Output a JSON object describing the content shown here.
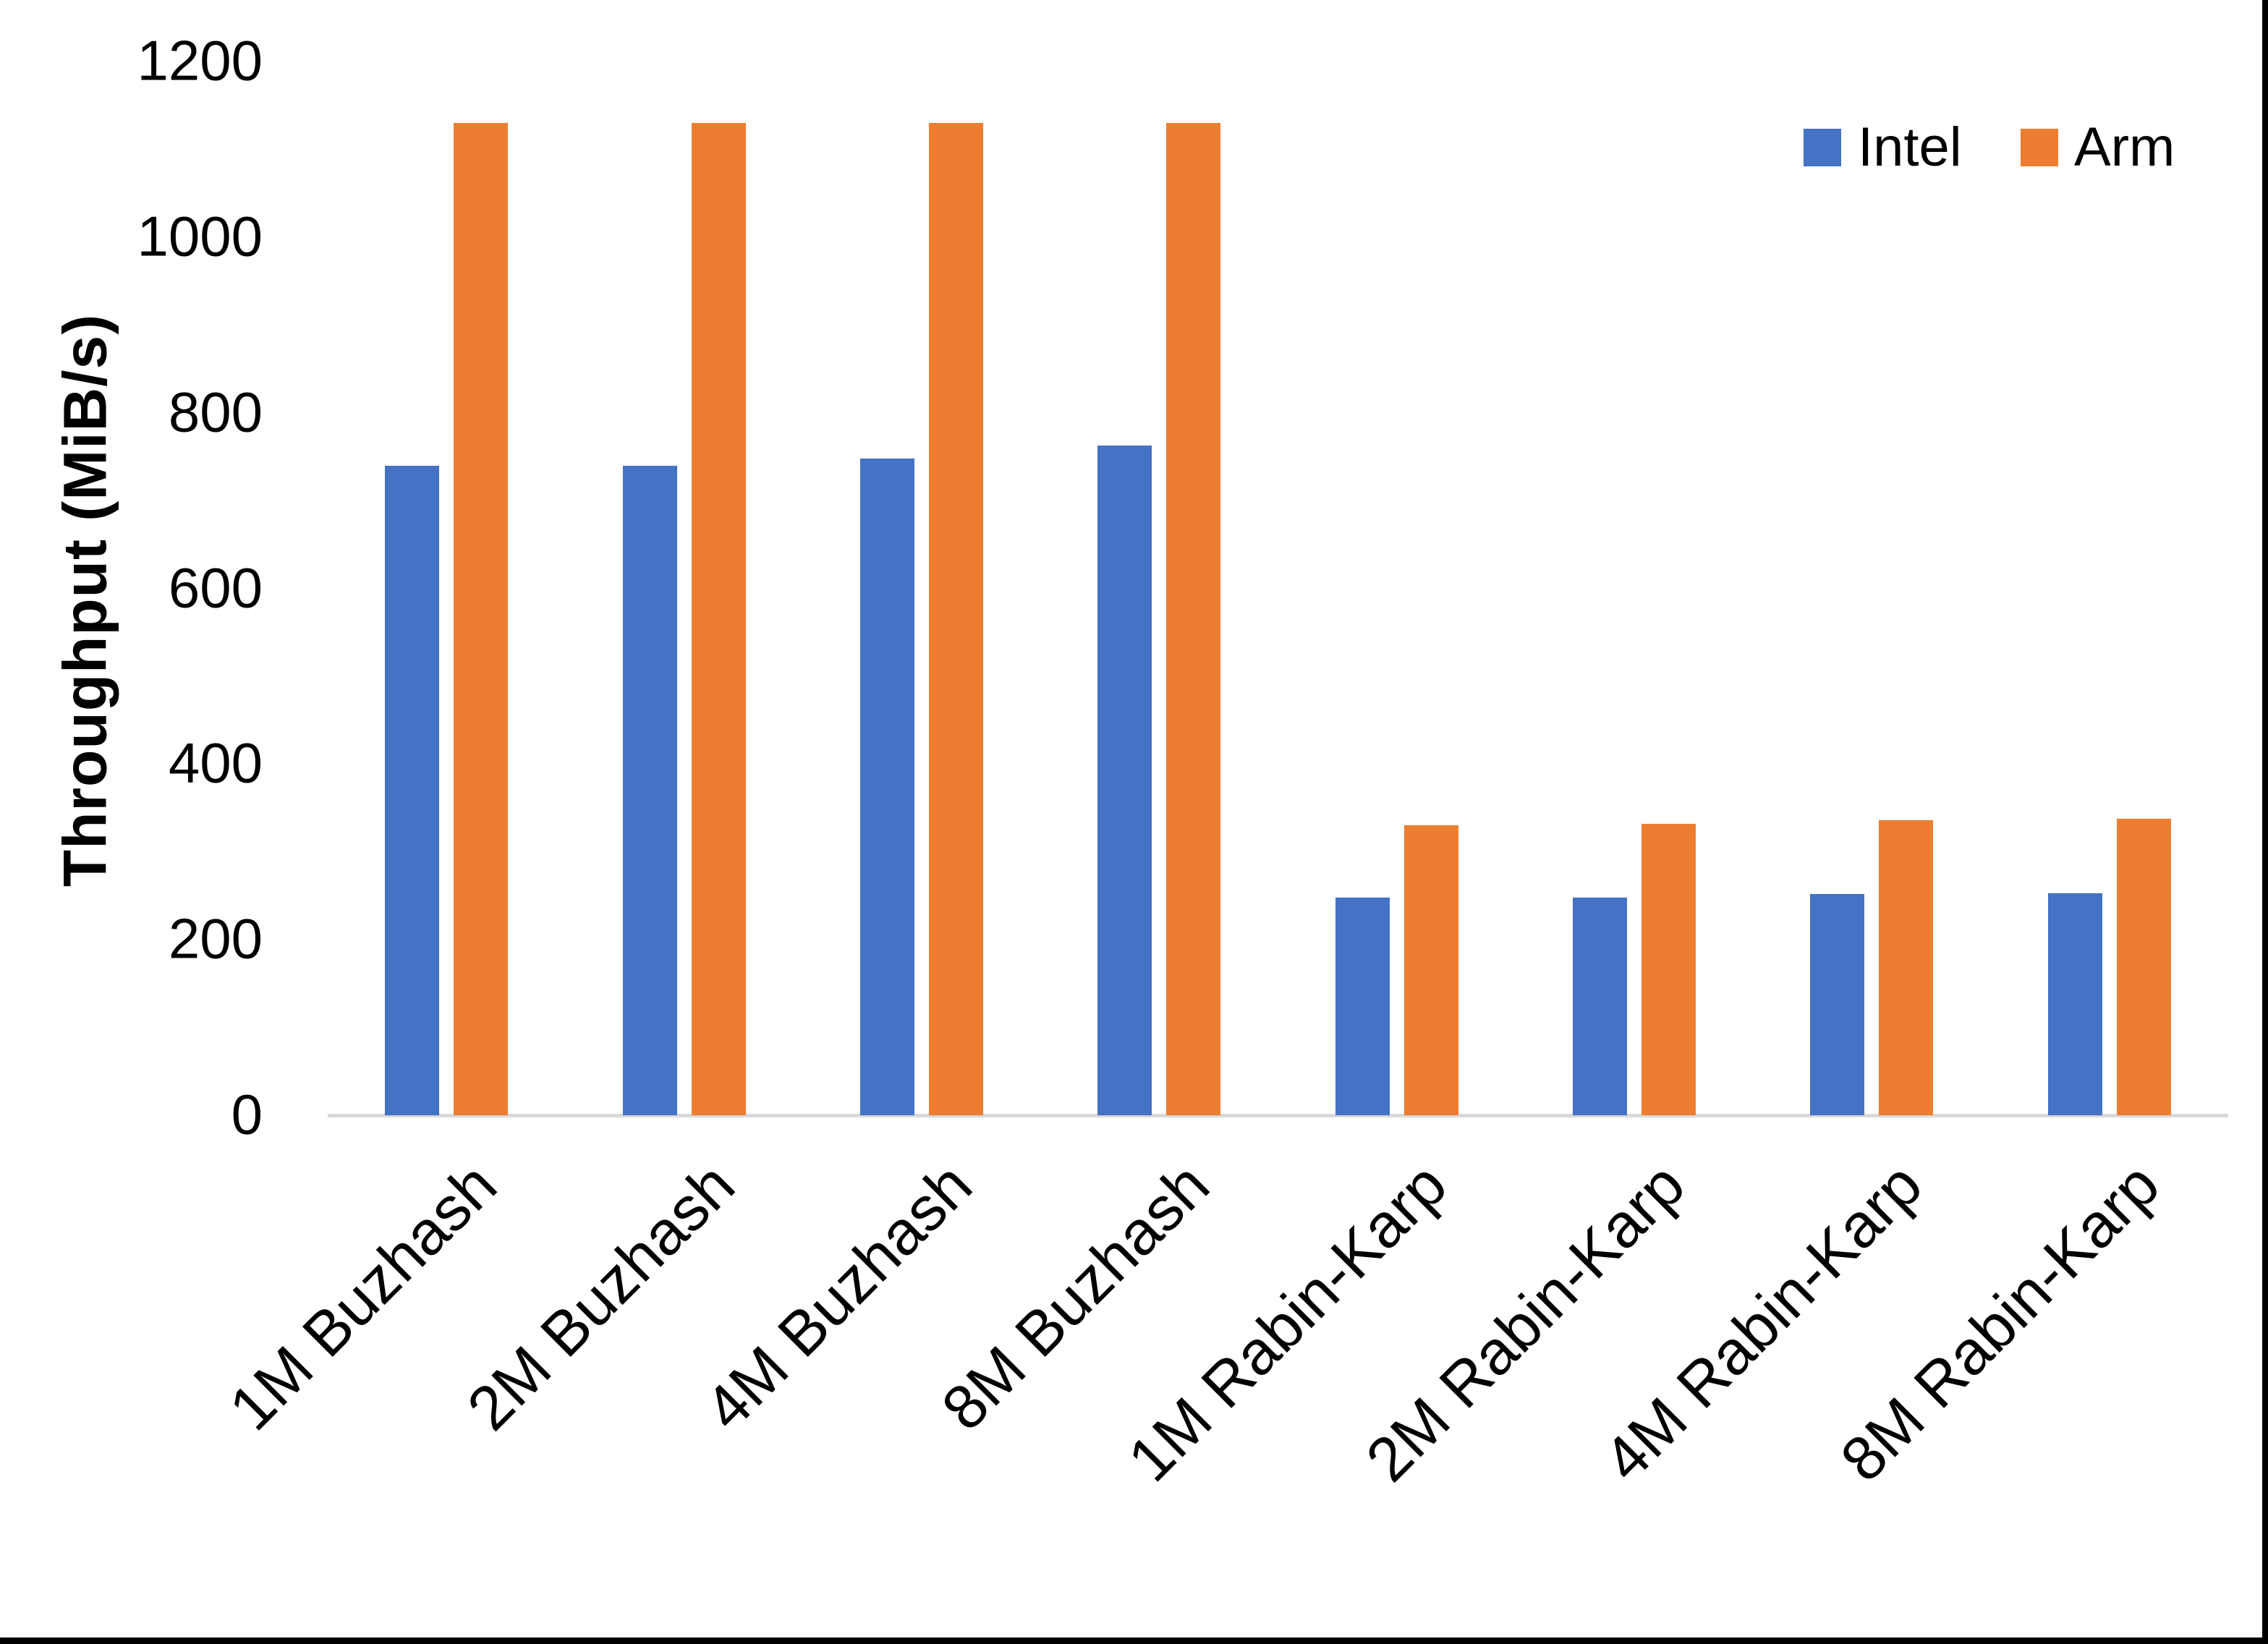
{
  "chart_data": {
    "type": "bar",
    "title": "",
    "ylabel": "Throughput (MiB/s)",
    "xlabel": "",
    "ylim": [
      0,
      1200
    ],
    "yticks": [
      0,
      200,
      400,
      600,
      800,
      1000,
      1200
    ],
    "grid": false,
    "legend_position": "top-right",
    "categories": [
      "1M Buzhash",
      "2M Buzhash",
      "4M Buzhash",
      "8M Buzhash",
      "1M Rabin-Karp",
      "2M Rabin-Karp",
      "4M Rabin-Karp",
      "8M Rabin-Karp"
    ],
    "series": [
      {
        "name": "Intel",
        "color": "#4472C4",
        "values": [
          740,
          740,
          748,
          763,
          248,
          248,
          252,
          253
        ]
      },
      {
        "name": "Arm",
        "color": "#ED7D31",
        "values": [
          1130,
          1130,
          1130,
          1130,
          330,
          332,
          336,
          338
        ]
      }
    ],
    "axis_line_color": "#D9D9D9",
    "text_color": "#000000"
  }
}
